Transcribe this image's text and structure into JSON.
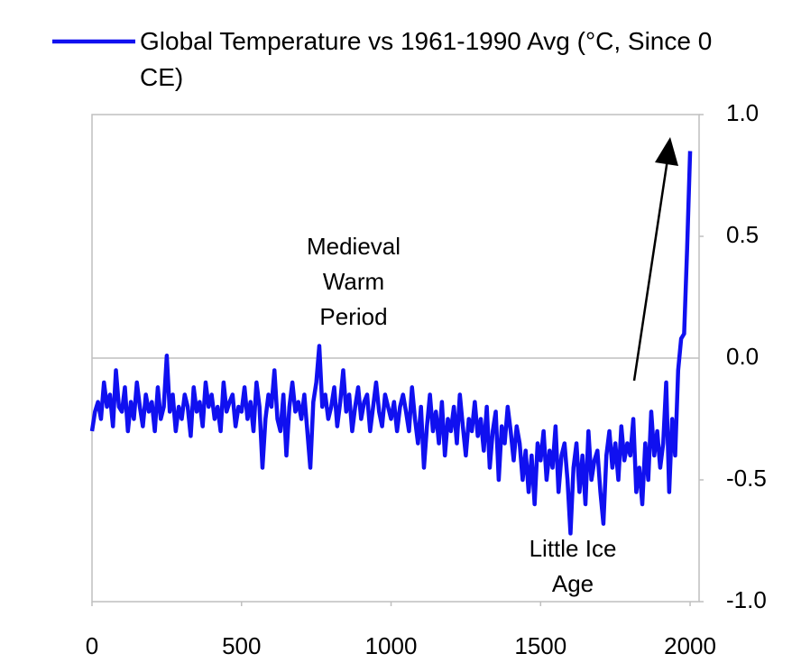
{
  "chart_data": {
    "type": "line",
    "x": [
      0,
      10,
      20,
      30,
      40,
      50,
      60,
      70,
      80,
      90,
      100,
      110,
      120,
      130,
      140,
      150,
      160,
      170,
      180,
      190,
      200,
      210,
      220,
      230,
      240,
      250,
      260,
      270,
      280,
      290,
      300,
      310,
      320,
      330,
      340,
      350,
      360,
      370,
      380,
      390,
      400,
      410,
      420,
      430,
      440,
      450,
      460,
      470,
      480,
      490,
      500,
      510,
      520,
      530,
      540,
      550,
      560,
      570,
      580,
      590,
      600,
      610,
      620,
      630,
      640,
      650,
      660,
      670,
      680,
      690,
      700,
      710,
      720,
      730,
      740,
      750,
      760,
      770,
      780,
      790,
      800,
      810,
      820,
      830,
      840,
      850,
      860,
      870,
      880,
      890,
      900,
      910,
      920,
      930,
      940,
      950,
      960,
      970,
      980,
      990,
      1000,
      1010,
      1020,
      1030,
      1040,
      1050,
      1060,
      1070,
      1080,
      1090,
      1100,
      1110,
      1120,
      1130,
      1140,
      1150,
      1160,
      1170,
      1180,
      1190,
      1200,
      1210,
      1220,
      1230,
      1240,
      1250,
      1260,
      1270,
      1280,
      1290,
      1300,
      1310,
      1320,
      1330,
      1340,
      1350,
      1360,
      1370,
      1380,
      1390,
      1400,
      1410,
      1420,
      1430,
      1440,
      1450,
      1460,
      1470,
      1480,
      1490,
      1500,
      1510,
      1520,
      1530,
      1540,
      1550,
      1560,
      1570,
      1580,
      1590,
      1600,
      1610,
      1620,
      1630,
      1640,
      1650,
      1660,
      1670,
      1680,
      1690,
      1700,
      1710,
      1720,
      1730,
      1740,
      1750,
      1760,
      1770,
      1780,
      1790,
      1800,
      1810,
      1820,
      1830,
      1840,
      1850,
      1860,
      1870,
      1880,
      1890,
      1900,
      1910,
      1920,
      1930,
      1940,
      1950,
      1960,
      1970,
      1980,
      1990,
      2000
    ],
    "series": [
      {
        "name": "Global Temperature vs 1961-1990 Avg (°C, Since 0 CE)",
        "color": "#1010f0",
        "values": [
          -0.3,
          -0.22,
          -0.18,
          -0.25,
          -0.1,
          -0.2,
          -0.15,
          -0.28,
          -0.05,
          -0.2,
          -0.22,
          -0.12,
          -0.3,
          -0.18,
          -0.25,
          -0.1,
          -0.2,
          -0.28,
          -0.15,
          -0.22,
          -0.18,
          -0.3,
          -0.12,
          -0.25,
          -0.2,
          0.01,
          -0.22,
          -0.15,
          -0.3,
          -0.2,
          -0.25,
          -0.15,
          -0.2,
          -0.32,
          -0.12,
          -0.22,
          -0.18,
          -0.28,
          -0.1,
          -0.2,
          -0.15,
          -0.25,
          -0.2,
          -0.3,
          -0.1,
          -0.22,
          -0.18,
          -0.15,
          -0.28,
          -0.2,
          -0.22,
          -0.12,
          -0.25,
          -0.18,
          -0.3,
          -0.1,
          -0.2,
          -0.45,
          -0.25,
          -0.15,
          -0.2,
          -0.05,
          -0.25,
          -0.3,
          -0.15,
          -0.4,
          -0.2,
          -0.1,
          -0.22,
          -0.18,
          -0.25,
          -0.15,
          -0.3,
          -0.45,
          -0.18,
          -0.1,
          0.05,
          -0.2,
          -0.15,
          -0.25,
          -0.2,
          -0.12,
          -0.28,
          -0.18,
          -0.05,
          -0.22,
          -0.15,
          -0.3,
          -0.2,
          -0.12,
          -0.25,
          -0.18,
          -0.15,
          -0.3,
          -0.2,
          -0.1,
          -0.22,
          -0.28,
          -0.15,
          -0.2,
          -0.25,
          -0.18,
          -0.3,
          -0.2,
          -0.15,
          -0.22,
          -0.3,
          -0.12,
          -0.25,
          -0.35,
          -0.2,
          -0.45,
          -0.28,
          -0.15,
          -0.3,
          -0.22,
          -0.35,
          -0.18,
          -0.4,
          -0.25,
          -0.3,
          -0.2,
          -0.35,
          -0.15,
          -0.28,
          -0.4,
          -0.25,
          -0.3,
          -0.18,
          -0.32,
          -0.25,
          -0.38,
          -0.2,
          -0.45,
          -0.3,
          -0.22,
          -0.5,
          -0.28,
          -0.35,
          -0.2,
          -0.3,
          -0.42,
          -0.28,
          -0.35,
          -0.5,
          -0.38,
          -0.55,
          -0.4,
          -0.6,
          -0.35,
          -0.42,
          -0.3,
          -0.5,
          -0.38,
          -0.45,
          -0.28,
          -0.55,
          -0.4,
          -0.35,
          -0.5,
          -0.72,
          -0.45,
          -0.35,
          -0.55,
          -0.4,
          -0.6,
          -0.3,
          -0.5,
          -0.42,
          -0.38,
          -0.55,
          -0.68,
          -0.4,
          -0.3,
          -0.45,
          -0.35,
          -0.5,
          -0.28,
          -0.42,
          -0.35,
          -0.4,
          -0.25,
          -0.55,
          -0.45,
          -0.6,
          -0.35,
          -0.5,
          -0.22,
          -0.4,
          -0.3,
          -0.45,
          -0.35,
          -0.1,
          -0.55,
          -0.25,
          -0.4,
          -0.05,
          0.08,
          0.1,
          0.45,
          0.85
        ]
      }
    ],
    "xlim": [
      0,
      2030
    ],
    "xticks": [
      0,
      500,
      1000,
      1500,
      2000
    ],
    "ylim": [
      -1,
      1
    ],
    "yticks": [
      {
        "value": 1,
        "label": "1.0"
      },
      {
        "value": 0.5,
        "label": "0.5"
      },
      {
        "value": 0,
        "label": "0.0"
      },
      {
        "value": -0.5,
        "label": "-0.5"
      },
      {
        "value": -1,
        "label": "-1.0"
      }
    ],
    "annotations": [
      {
        "lines": [
          "Medieval",
          "Warm",
          "Period"
        ]
      },
      {
        "lines": [
          "Little Ice",
          "Age"
        ]
      }
    ],
    "legend": "top-left"
  }
}
